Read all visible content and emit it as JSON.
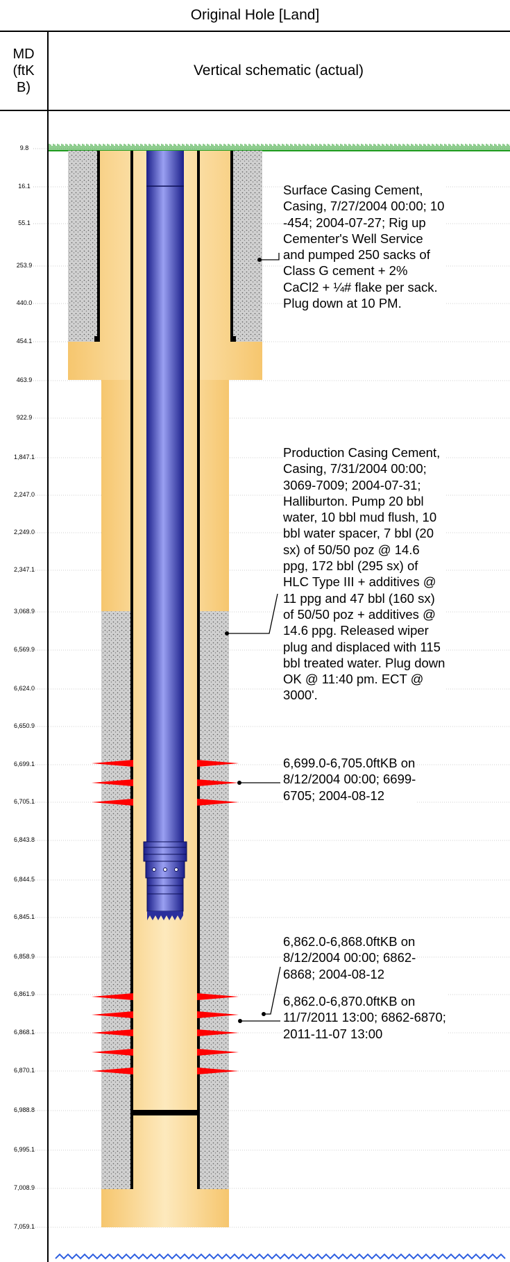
{
  "header": {
    "title": "Original Hole [Land]",
    "md_column": "MD\n(ftK\nB)",
    "schematic_column": "Vertical schematic (actual)"
  },
  "md_labels": [
    "9.8",
    "16.1",
    "55.1",
    "253.9",
    "440.0",
    "454.1",
    "463.9",
    "922.9",
    "1,847.1",
    "2,247.0",
    "2,249.0",
    "2,347.1",
    "3,068.9",
    "6,569.9",
    "6,624.0",
    "6,650.9",
    "6,699.1",
    "6,705.1",
    "6,843.8",
    "6,844.5",
    "6,845.1",
    "6,858.9",
    "6,861.9",
    "6,868.1",
    "6,870.1",
    "6,988.8",
    "6,995.1",
    "7,008.9",
    "7,059.1"
  ],
  "annotations": {
    "surface_cement": [
      "Surface Casing Cement,",
      "Casing, 7/27/2004 00:00; 10",
      "-454; 2004-07-27; Rig up",
      "Cementer's Well Service",
      "and pumped 250 sacks of",
      "Class G cement + 2%",
      "CaCl2 + ¼# flake per sack.",
      "Plug down at 10 PM."
    ],
    "production_cement": [
      "Production Casing Cement,",
      "Casing, 7/31/2004 00:00;",
      "3069-7009; 2004-07-31;",
      "Halliburton. Pump 20 bbl",
      "water, 10 bbl mud flush, 10",
      "bbl water spacer, 7 bbl (20",
      "sx) of 50/50 poz @ 14.6",
      "ppg, 172 bbl (295 sx) of",
      "HLC Type III + additives @",
      "11 ppg and 47 bbl (160 sx)",
      "of 50/50 poz + additives @",
      "14.6 ppg. Released wiper",
      "plug and displaced with 115",
      "bbl treated water. Plug down",
      "OK @ 11:40 pm. ECT @",
      "3000'."
    ],
    "perf_1": [
      "6,699.0-6,705.0ftKB on",
      "8/12/2004 00:00; 6699-",
      "6705; 2004-08-12"
    ],
    "perf_2": [
      "6,862.0-6,868.0ftKB on",
      "8/12/2004 00:00; 6862-",
      "6868; 2004-08-12"
    ],
    "perf_3": [
      "6,862.0-6,870.0ftKB on",
      "11/7/2011 13:00; 6862-6870;",
      "2011-11-07 13:00"
    ]
  },
  "colors": {
    "formation": "#f9cc7a",
    "formation_light": "#fde7b8",
    "cement": "#c8c8c8",
    "casing": "#000000",
    "tubing": "#3b3fc4",
    "perforation": "#ff0000",
    "ground": "#1f9b1f",
    "td_marker": "#2e5fe0"
  },
  "icons": {
    "perforation": "red-perforation-shot-icon",
    "ground_surface": "grass-surface-icon",
    "total_depth": "blue-zigzag-icon"
  }
}
